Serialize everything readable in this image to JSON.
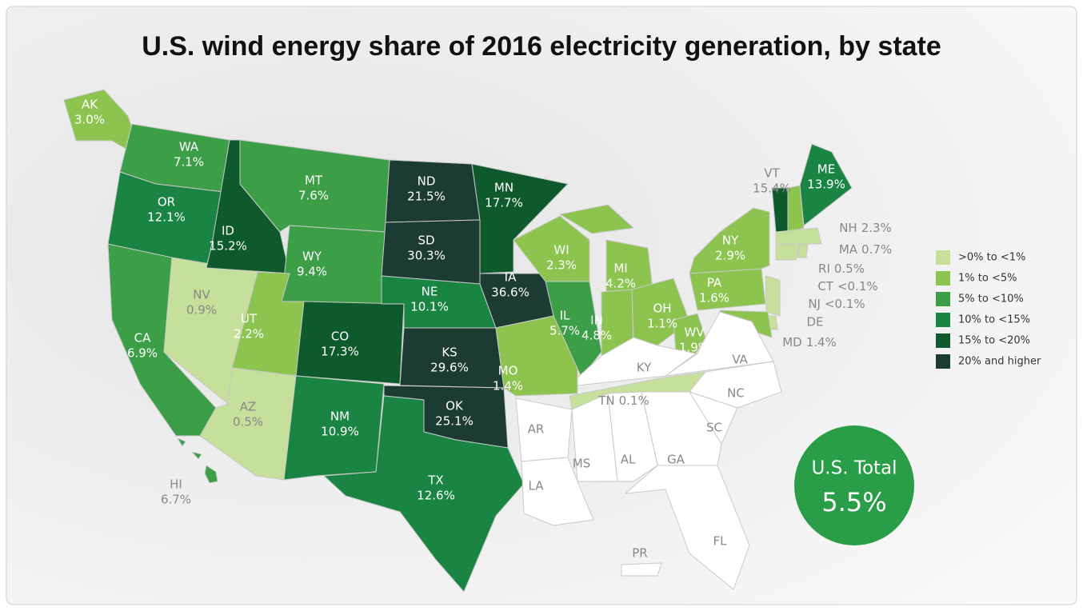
{
  "title": "U.S. wind energy share of 2016 electricity generation, by state",
  "legend": [
    {
      "label": ">0% to <1%",
      "color": "#c6e09c"
    },
    {
      "label": "1% to <5%",
      "color": "#8cc44f"
    },
    {
      "label": "5% to <10%",
      "color": "#3d9e48"
    },
    {
      "label": "10% to <15%",
      "color": "#1a8442"
    },
    {
      "label": "15% to <20%",
      "color": "#0e5a2d"
    },
    {
      "label": "20% and higher",
      "color": "#1c3b33"
    }
  ],
  "states": [
    {
      "abbr": "AK",
      "value_label": "3.0%",
      "color": "#8cc44f"
    },
    {
      "abbr": "WA",
      "value_label": "7.1%",
      "color": "#3d9e48"
    },
    {
      "abbr": "OR",
      "value_label": "12.1%",
      "color": "#1a8442"
    },
    {
      "abbr": "CA",
      "value_label": "6.9%",
      "color": "#3d9e48"
    },
    {
      "abbr": "NV",
      "value_label": "0.9%",
      "color": "#c6e09c"
    },
    {
      "abbr": "ID",
      "value_label": "15.2%",
      "color": "#0e5a2d"
    },
    {
      "abbr": "MT",
      "value_label": "7.6%",
      "color": "#3d9e48"
    },
    {
      "abbr": "WY",
      "value_label": "9.4%",
      "color": "#3d9e48"
    },
    {
      "abbr": "UT",
      "value_label": "2.2%",
      "color": "#8cc44f"
    },
    {
      "abbr": "AZ",
      "value_label": "0.5%",
      "color": "#c6e09c"
    },
    {
      "abbr": "CO",
      "value_label": "17.3%",
      "color": "#0e5a2d"
    },
    {
      "abbr": "NM",
      "value_label": "10.9%",
      "color": "#1a8442"
    },
    {
      "abbr": "ND",
      "value_label": "21.5%",
      "color": "#1c3b33"
    },
    {
      "abbr": "SD",
      "value_label": "30.3%",
      "color": "#1c3b33"
    },
    {
      "abbr": "NE",
      "value_label": "10.1%",
      "color": "#1a8442"
    },
    {
      "abbr": "KS",
      "value_label": "29.6%",
      "color": "#1c3b33"
    },
    {
      "abbr": "OK",
      "value_label": "25.1%",
      "color": "#1c3b33"
    },
    {
      "abbr": "TX",
      "value_label": "12.6%",
      "color": "#1a8442"
    },
    {
      "abbr": "MN",
      "value_label": "17.7%",
      "color": "#0e5a2d"
    },
    {
      "abbr": "IA",
      "value_label": "36.6%",
      "color": "#1c3b33"
    },
    {
      "abbr": "MO",
      "value_label": "1.4%",
      "color": "#8cc44f"
    },
    {
      "abbr": "WI",
      "value_label": "2.3%",
      "color": "#8cc44f"
    },
    {
      "abbr": "IL",
      "value_label": "5.7%",
      "color": "#3d9e48"
    },
    {
      "abbr": "MI",
      "value_label": "4.2%",
      "color": "#8cc44f"
    },
    {
      "abbr": "IN",
      "value_label": "4.8%",
      "color": "#8cc44f"
    },
    {
      "abbr": "OH",
      "value_label": "1.1%",
      "color": "#8cc44f"
    },
    {
      "abbr": "PA",
      "value_label": "1.6%",
      "color": "#8cc44f"
    },
    {
      "abbr": "NY",
      "value_label": "2.9%",
      "color": "#8cc44f"
    },
    {
      "abbr": "WV",
      "value_label": "1.9%",
      "color": "#8cc44f"
    },
    {
      "abbr": "VT",
      "value_label": "15.4%",
      "color": "#0e5a2d"
    },
    {
      "abbr": "ME",
      "value_label": "13.9%",
      "color": "#1a8442"
    },
    {
      "abbr": "NH",
      "value_label": "2.3%",
      "color": "#8cc44f"
    },
    {
      "abbr": "MA",
      "value_label": "0.7%",
      "color": "#c6e09c"
    },
    {
      "abbr": "RI",
      "value_label": "0.5%",
      "color": "#c6e09c"
    },
    {
      "abbr": "CT",
      "value_label": "<0.1%",
      "color": "#c6e09c"
    },
    {
      "abbr": "NJ",
      "value_label": "<0.1%",
      "color": "#c6e09c"
    },
    {
      "abbr": "DE",
      "color": "#c6e09c"
    },
    {
      "abbr": "MD",
      "value_label": "1.4%",
      "color": "#8cc44f"
    },
    {
      "abbr": "TN",
      "value_label": "0.1%",
      "color": "#c6e09c"
    },
    {
      "abbr": "HI",
      "value_label": "6.7%",
      "color": "#3d9e48"
    },
    {
      "abbr": "VA",
      "color": "#ffffff"
    },
    {
      "abbr": "KY",
      "color": "#ffffff"
    },
    {
      "abbr": "NC",
      "color": "#ffffff"
    },
    {
      "abbr": "SC",
      "color": "#ffffff"
    },
    {
      "abbr": "GA",
      "color": "#ffffff"
    },
    {
      "abbr": "AL",
      "color": "#ffffff"
    },
    {
      "abbr": "MS",
      "color": "#ffffff"
    },
    {
      "abbr": "AR",
      "color": "#ffffff"
    },
    {
      "abbr": "LA",
      "color": "#ffffff"
    },
    {
      "abbr": "FL",
      "color": "#ffffff"
    },
    {
      "abbr": "PR",
      "color": "#ffffff"
    }
  ],
  "total": {
    "label": "U.S. Total",
    "value_label": "5.5%"
  }
}
